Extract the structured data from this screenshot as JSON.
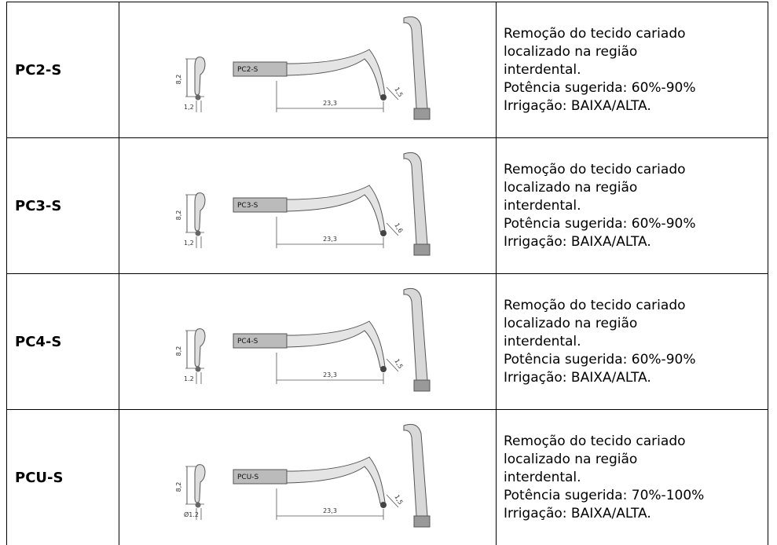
{
  "table": {
    "rows": [
      {
        "name": "PC2-S",
        "drawing": {
          "height": "8,2",
          "width": "1,2",
          "tag": "PC2-S",
          "length": "23,3",
          "tip": "1,5"
        },
        "description": [
          "Remoção do tecido cariado",
          "localizado na região",
          "interdental.",
          "Potência sugerida: 60%-90%",
          "Irrigação: BAIXA/ALTA."
        ]
      },
      {
        "name": "PC3-S",
        "drawing": {
          "height": "8,2",
          "width": "1,2",
          "tag": "PC3-S",
          "length": "23,3",
          "tip": "1,6"
        },
        "description": [
          "Remoção do tecido cariado",
          "localizado na região",
          "interdental.",
          "Potência sugerida: 60%-90%",
          "Irrigação: BAIXA/ALTA."
        ]
      },
      {
        "name": "PC4-S",
        "drawing": {
          "height": "8,2",
          "width": "1.2",
          "tag": "PC4-S",
          "length": "23,3",
          "tip": "1,5"
        },
        "description": [
          "Remoção do tecido cariado",
          "localizado na região",
          "interdental.",
          "Potência sugerida: 60%-90%",
          "Irrigação: BAIXA/ALTA."
        ]
      },
      {
        "name": "PCU-S",
        "drawing": {
          "height": "8,2",
          "width": "Ø1.2",
          "tag": "PCU-S",
          "length": "23,3",
          "tip": "1,5"
        },
        "description": [
          "Remoção do tecido cariado",
          "localizado na região",
          "interdental.",
          "Potência sugerida: 70%-100%",
          "Irrigação: BAIXA/ALTA."
        ]
      }
    ]
  }
}
